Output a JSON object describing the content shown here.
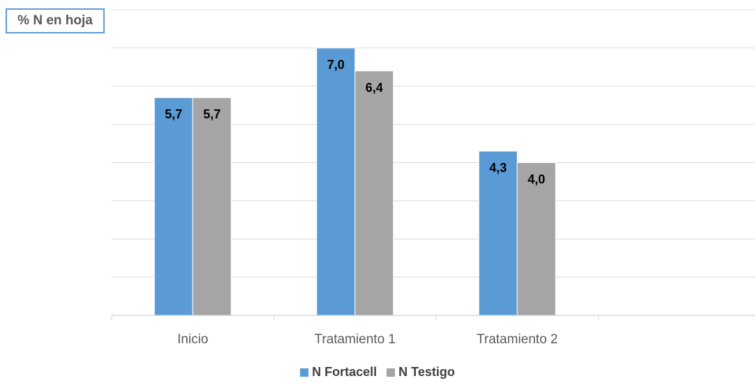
{
  "chart_data": {
    "type": "bar",
    "title": "% N en hoja",
    "categories": [
      "Inicio",
      "Tratamiento 1",
      "Tratamiento 2",
      ""
    ],
    "series": [
      {
        "name": "N Fortacell",
        "values": [
          5.7,
          7.0,
          4.3,
          null
        ],
        "labels": [
          "5,7",
          "7,0",
          "4,3",
          ""
        ],
        "color": "#5b9bd5"
      },
      {
        "name": "N Testigo",
        "values": [
          5.7,
          6.4,
          4.0,
          null
        ],
        "labels": [
          "5,7",
          "6,4",
          "4,0",
          ""
        ],
        "color": "#a5a5a5"
      }
    ],
    "ylim": [
      0,
      8
    ],
    "grid": true,
    "legend_position": "bottom"
  }
}
